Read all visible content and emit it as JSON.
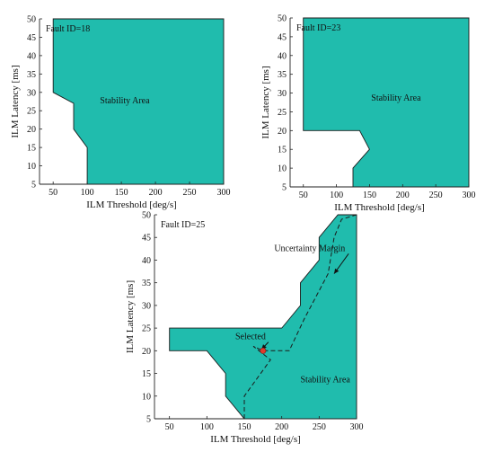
{
  "colors": {
    "region": "#20bcad",
    "axis": "#222222",
    "marker": "#e23b2b",
    "margin_line": "#1a1a1a"
  },
  "chart_data": [
    {
      "type": "area",
      "fault_label": "Fault ID=18",
      "xlabel": "ILM Threshold [deg/s]",
      "ylabel": "ILM Latency [ms]",
      "xlim": [
        30,
        300
      ],
      "ylim": [
        5,
        50
      ],
      "xticks": [
        50,
        100,
        150,
        200,
        250,
        300
      ],
      "yticks": [
        5,
        10,
        15,
        20,
        25,
        30,
        35,
        40,
        45,
        50
      ],
      "region_boundary": [
        [
          50,
          50
        ],
        [
          300,
          50
        ],
        [
          300,
          5
        ],
        [
          100,
          5
        ],
        [
          100,
          15
        ],
        [
          80,
          20
        ],
        [
          80,
          27
        ],
        [
          50,
          30
        ]
      ],
      "region_label": "Stability Area",
      "region_label_at": [
        155,
        27
      ]
    },
    {
      "type": "area",
      "fault_label": "Fault ID=23",
      "xlabel": "ILM Threshold [deg/s]",
      "ylabel": "ILM Latency [ms]",
      "xlim": [
        30,
        300
      ],
      "ylim": [
        5,
        50
      ],
      "xticks": [
        50,
        100,
        150,
        200,
        250,
        300
      ],
      "yticks": [
        5,
        10,
        15,
        20,
        25,
        30,
        35,
        40,
        45,
        50
      ],
      "region_boundary": [
        [
          50,
          50
        ],
        [
          300,
          50
        ],
        [
          300,
          5
        ],
        [
          125,
          5
        ],
        [
          125,
          10
        ],
        [
          150,
          15
        ],
        [
          135,
          20
        ],
        [
          50,
          20
        ]
      ],
      "region_label": "Stability Area",
      "region_label_at": [
        190,
        28
      ]
    },
    {
      "type": "area",
      "fault_label": "Fault ID=25",
      "xlabel": "ILM Threshold [deg/s]",
      "ylabel": "ILM Latency [ms]",
      "xlim": [
        30,
        300
      ],
      "ylim": [
        5,
        50
      ],
      "xticks": [
        50,
        100,
        150,
        200,
        250,
        300
      ],
      "yticks": [
        5,
        10,
        15,
        20,
        25,
        30,
        35,
        40,
        45,
        50
      ],
      "region_boundary": [
        [
          50,
          25
        ],
        [
          50,
          20
        ],
        [
          100,
          20
        ],
        [
          125,
          15
        ],
        [
          125,
          10
        ],
        [
          150,
          5
        ],
        [
          300,
          5
        ],
        [
          300,
          50
        ],
        [
          275,
          50
        ],
        [
          250,
          45
        ],
        [
          250,
          40
        ],
        [
          225,
          35
        ],
        [
          225,
          30
        ],
        [
          200,
          25
        ]
      ],
      "margin_line": [
        [
          150,
          5
        ],
        [
          150,
          10
        ],
        [
          185,
          18
        ],
        [
          162,
          21
        ],
        [
          175,
          20
        ],
        [
          210,
          20
        ],
        [
          230,
          27
        ],
        [
          262,
          37
        ],
        [
          270,
          45
        ],
        [
          280,
          49
        ],
        [
          300,
          50
        ]
      ],
      "selected_point": [
        175,
        20
      ],
      "annotations": [
        {
          "text": "Uncertainty Margin",
          "at": [
            190,
            42
          ],
          "arrow_to": [
            270,
            37
          ]
        },
        {
          "text": "Selected",
          "at": [
            138,
            22.5
          ],
          "arrow_to": [
            173,
            20.3
          ]
        },
        {
          "text": "Stability Area",
          "at": [
            225,
            13
          ],
          "arrow_to": null
        }
      ]
    }
  ]
}
